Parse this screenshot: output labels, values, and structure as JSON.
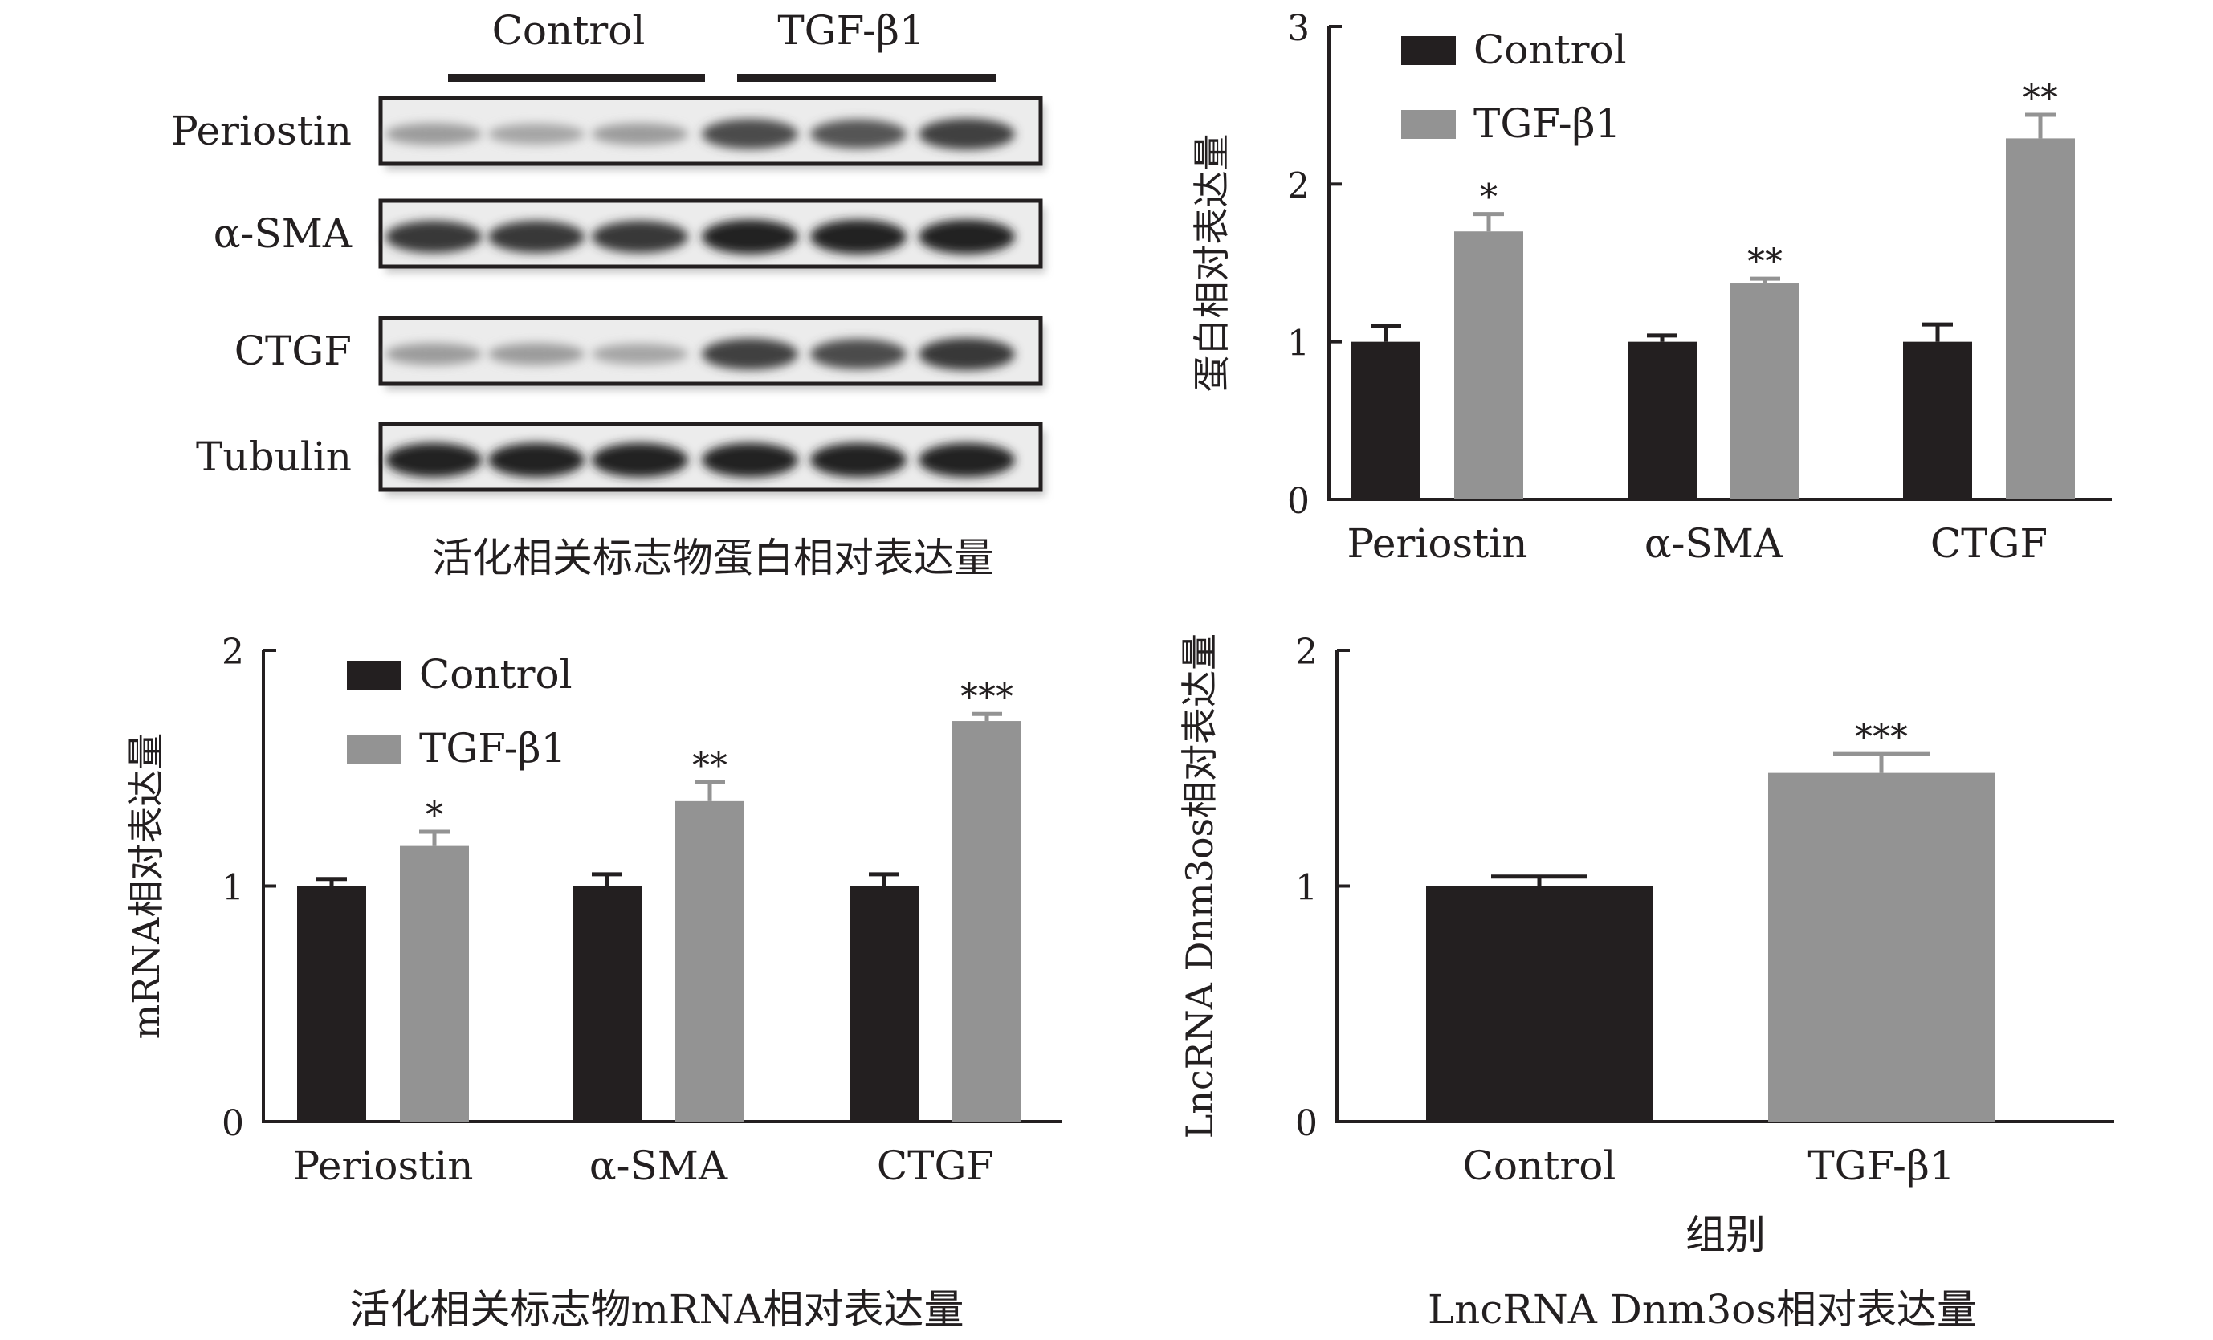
{
  "colors": {
    "control": "#231f20",
    "tgf": "#939393",
    "axis": "#231f20"
  },
  "western_blot": {
    "groups": [
      "Control",
      "TGF-β1"
    ],
    "rows": [
      {
        "label": "Periostin",
        "intensity": [
          0.35,
          0.3,
          0.35,
          0.75,
          0.7,
          0.8
        ]
      },
      {
        "label": "α-SMA",
        "intensity": [
          0.85,
          0.85,
          0.85,
          0.95,
          0.95,
          0.95
        ]
      },
      {
        "label": "CTGF",
        "intensity": [
          0.35,
          0.35,
          0.3,
          0.8,
          0.75,
          0.85
        ]
      },
      {
        "label": "Tubulin",
        "intensity": [
          0.95,
          0.95,
          0.95,
          0.95,
          0.95,
          0.95
        ]
      }
    ],
    "caption": "活化相关标志物蛋白相对表达量"
  },
  "chart_data": [
    {
      "type": "bar",
      "categories": [
        "Periostin",
        "α-SMA",
        "CTGF"
      ],
      "series": [
        {
          "name": "Control",
          "values": [
            1.0,
            1.0,
            1.0
          ],
          "errors": [
            0.1,
            0.04,
            0.11
          ]
        },
        {
          "name": "TGF-β1",
          "values": [
            1.7,
            1.37,
            2.29
          ],
          "errors": [
            0.11,
            0.03,
            0.15
          ]
        }
      ],
      "significance": [
        "*",
        "**",
        "**"
      ],
      "ylabel": "蛋白相对表达量",
      "xlabel": "",
      "ylim": [
        0,
        3
      ],
      "yticks": [
        0,
        1,
        2,
        3
      ],
      "legend": "top-left",
      "grid": false
    },
    {
      "type": "bar",
      "categories": [
        "Periostin",
        "α-SMA",
        "CTGF"
      ],
      "series": [
        {
          "name": "Control",
          "values": [
            1.0,
            1.0,
            1.0
          ],
          "errors": [
            0.03,
            0.05,
            0.05
          ]
        },
        {
          "name": "TGF-β1",
          "values": [
            1.17,
            1.36,
            1.7
          ],
          "errors": [
            0.06,
            0.08,
            0.03
          ]
        }
      ],
      "significance": [
        "*",
        "**",
        "***"
      ],
      "ylabel": "mRNA相对表达量",
      "xlabel": "",
      "ylim": [
        0,
        2
      ],
      "yticks": [
        0,
        1,
        2
      ],
      "legend": "top-left",
      "grid": false,
      "caption": "活化相关标志物mRNA相对表达量"
    },
    {
      "type": "bar",
      "categories": [
        "Control",
        "TGF-β1"
      ],
      "series": [
        {
          "name": "",
          "values": [
            1.0,
            1.48
          ],
          "errors": [
            0.04,
            0.08
          ]
        }
      ],
      "significance": [
        "",
        "***"
      ],
      "ylabel": "LncRNA Dnm3os相对表达量",
      "xlabel": "组别",
      "ylim": [
        0,
        2
      ],
      "yticks": [
        0,
        1,
        2
      ],
      "grid": false,
      "caption": "LncRNA Dnm3os相对表达量"
    }
  ]
}
